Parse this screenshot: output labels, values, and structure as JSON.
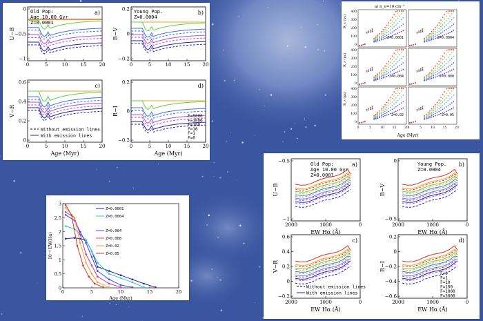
{
  "colors": {
    "background": "#3a56a0",
    "F5000": "#e03020",
    "F1000": "#f0a020",
    "F100": "#60d040",
    "F10": "#4070f0",
    "F1": "#b050d0",
    "F0": "#2020b0"
  },
  "panel_tl": {
    "a": {
      "inset": [
        "Old Pop:",
        "Age 10.00 Gyr",
        "Z=0.0001"
      ],
      "tag": "a)",
      "ylabel": "U−B",
      "yticks": [
        "0",
        "−0.5",
        "−1"
      ],
      "xticks": [
        "0",
        "5",
        "10",
        "15",
        "20"
      ]
    },
    "b": {
      "inset": [
        "Young Pop.",
        "Z=0.0004"
      ],
      "tag": "b)",
      "ylabel": "B−V",
      "yticks": [
        "0.2",
        "0",
        "−0.2"
      ],
      "xticks": [
        "0",
        "5",
        "10",
        "15",
        "20"
      ]
    },
    "c": {
      "tag": "c)",
      "ylabel": "V−R",
      "yticks": [
        "0.6",
        "0.4",
        "0.2",
        "0"
      ],
      "xticks": [
        "0",
        "5",
        "10",
        "15",
        "20"
      ],
      "legend": [
        "Without emission lines",
        "With emission lines"
      ]
    },
    "d": {
      "tag": "d)",
      "ylabel": "R−I",
      "yticks": [
        "0.2",
        "0",
        "−0.2"
      ],
      "xticks": [
        "0",
        "5",
        "10",
        "15",
        "20"
      ],
      "flabels": [
        "F=5000",
        "F=1000",
        "F=100",
        "F=10",
        "F=1",
        "F=0"
      ]
    },
    "xlabel": "Age (Myr)"
  },
  "panel_tr": {
    "header": "a) n_e=10 cm⁻³",
    "ylabel": "R_s (pc)",
    "xlabel": "Age (Myr)",
    "yticks": [
      "400",
      "300",
      "200",
      "100",
      "0"
    ],
    "xticks": [
      "0",
      "5",
      "10",
      "15",
      "20"
    ],
    "zlabels": [
      "Z=0.0001",
      "Z=0.0004",
      "Z=0.004",
      "Z=0.008",
      "Z=0.02",
      "Z=0.05"
    ]
  },
  "panel_bl": {
    "ylabel": "10⁻⁴ EW(Hα)",
    "xlabel": "Age (Myr)",
    "yticks": [
      "3",
      "2.5",
      "2",
      "1.5",
      "1",
      "0.5",
      "0"
    ],
    "xticks": [
      "0",
      "5",
      "10",
      "15",
      "20"
    ],
    "zlabels": [
      "Z=0.0001",
      "Z=0.0004",
      "Z=0.004",
      "Z=0.008",
      "Z=0.02",
      "Z=0.05"
    ]
  },
  "panel_br": {
    "a": {
      "inset": [
        "Old Pop:",
        "Age 10.00 Gyr",
        "Z=0.0001"
      ],
      "tag": "a)",
      "ylabel": "U−B",
      "yticks": [
        "−0.5",
        "−1"
      ],
      "xticks": [
        "2000",
        "1000",
        "0"
      ]
    },
    "b": {
      "inset": [
        "Young Pop.",
        "Z=0.0004"
      ],
      "tag": "b)",
      "ylabel": "B−V",
      "yticks": [
        "0",
        "−0.5"
      ],
      "xticks": [
        "2000",
        "1000",
        "0"
      ]
    },
    "c": {
      "tag": "c)",
      "ylabel": "V−R",
      "yticks": [
        "0.6",
        "0.4",
        "0.2",
        "0",
        "−0.2"
      ],
      "xticks": [
        "2000",
        "1000",
        "0"
      ],
      "legend": [
        "Without emission lines",
        "With emission lines"
      ]
    },
    "d": {
      "tag": "d)",
      "ylabel": "R−I",
      "yticks": [
        "0.2",
        "0",
        "−0.2",
        "−0.4",
        "−0.6"
      ],
      "xticks": [
        "2000",
        "1000",
        "0"
      ],
      "flabels": [
        "F=0",
        "F=1",
        "F=10",
        "F=100",
        "F=1000",
        "F=5000"
      ]
    },
    "xlabel": "EW Hα (Å)"
  },
  "chart_data": [
    {
      "type": "line",
      "title": "",
      "xlabel": "Age (Myr)",
      "ylabel": "10⁻⁴ EW(Hα)",
      "xlim": [
        0,
        20
      ],
      "ylim": [
        0,
        3
      ],
      "series": [
        {
          "name": "Z=0.0001",
          "x": [
            0.5,
            2,
            3,
            4,
            5,
            6,
            8,
            10,
            12,
            14,
            16
          ],
          "y": [
            1.75,
            1.78,
            1.75,
            1.7,
            1.3,
            0.75,
            0.6,
            0.45,
            0.3,
            0.15,
            0.02
          ]
        },
        {
          "name": "Z=0.0004",
          "x": [
            0.5,
            2,
            3,
            4,
            5,
            6,
            8,
            10,
            12,
            14
          ],
          "y": [
            2.2,
            2.1,
            1.9,
            1.7,
            1.3,
            0.9,
            0.5,
            0.35,
            0.2,
            0.02
          ]
        },
        {
          "name": "Z=0.004",
          "x": [
            0.5,
            2,
            3,
            4,
            5,
            6,
            8,
            10,
            12
          ],
          "y": [
            2.6,
            2.4,
            2.0,
            1.6,
            1.1,
            0.6,
            0.3,
            0.1,
            0.02
          ]
        },
        {
          "name": "Z=0.008",
          "x": [
            0.5,
            2,
            3,
            4,
            5,
            6,
            8,
            10
          ],
          "y": [
            2.7,
            2.5,
            1.9,
            1.2,
            0.8,
            0.4,
            0.15,
            0.02
          ]
        },
        {
          "name": "Z=0.02",
          "x": [
            0.5,
            2,
            3,
            4,
            5,
            6,
            8
          ],
          "y": [
            2.85,
            2.5,
            1.6,
            0.9,
            0.5,
            0.2,
            0.02
          ]
        },
        {
          "name": "Z=0.05",
          "x": [
            0.5,
            1.5,
            2.5,
            3.5,
            4.5,
            5.5,
            7
          ],
          "y": [
            2.95,
            2.6,
            1.5,
            0.8,
            0.4,
            0.15,
            0.02
          ]
        }
      ]
    }
  ]
}
